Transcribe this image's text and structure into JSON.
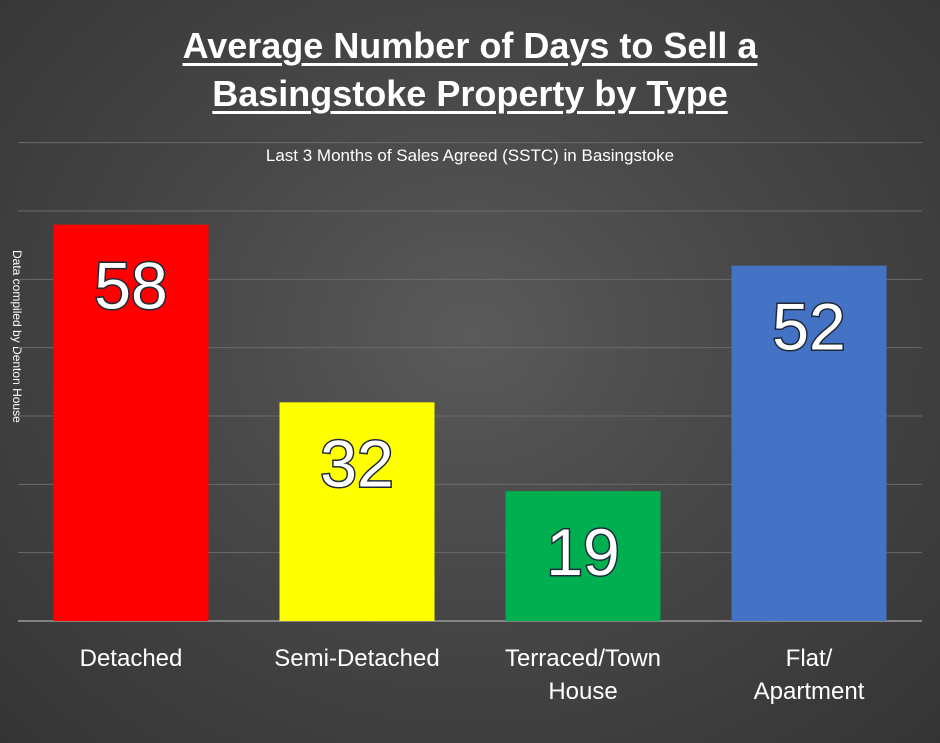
{
  "chart_data": {
    "type": "bar",
    "title": "Average Number of Days to Sell a Basingstoke Property by Type",
    "title_lines": [
      "Average Number of Days to Sell a",
      "Basingstoke Property by Type"
    ],
    "subtitle": "Last 3 Months of Sales Agreed (SSTC) in Basingstoke",
    "side_note": "Data compiled by Denton House",
    "categories": [
      [
        "Detached"
      ],
      [
        "Semi-Detached"
      ],
      [
        "Terraced/Town",
        "House"
      ],
      [
        "Flat/",
        "Apartment"
      ]
    ],
    "values": [
      58,
      32,
      19,
      52
    ],
    "colors": [
      "#ff0000",
      "#ffff00",
      "#00b050",
      "#4472c4"
    ],
    "ylim": [
      0,
      60
    ],
    "grid": true,
    "data_labels": true
  }
}
